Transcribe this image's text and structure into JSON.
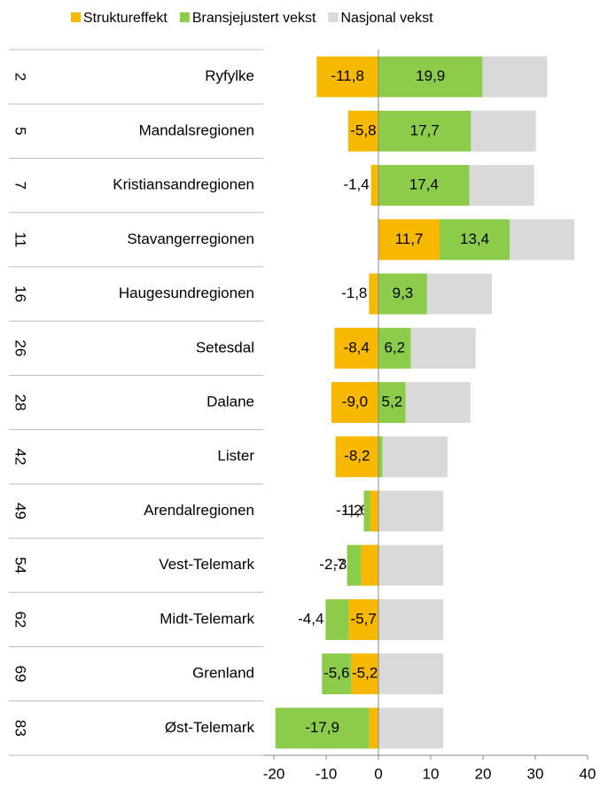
{
  "chart_data": {
    "type": "bar",
    "orientation": "horizontal",
    "stacked": true,
    "ranks": [
      "2",
      "5",
      "7",
      "11",
      "16",
      "26",
      "28",
      "42",
      "49",
      "54",
      "62",
      "69",
      "83"
    ],
    "categories": [
      "Ryfylke",
      "Mandalsregionen",
      "Kristiansandregionen",
      "Stavangerregionen",
      "Haugesundregionen",
      "Setesdal",
      "Dalane",
      "Lister",
      "Arendalregionen",
      "Vest-Telemark",
      "Midt-Telemark",
      "Grenland",
      "Øst-Telemark"
    ],
    "series": [
      {
        "name": "Struktureffekt",
        "color": "#F9B800",
        "values": [
          -11.8,
          -5.8,
          -1.4,
          11.7,
          -1.8,
          -8.4,
          -9.0,
          -8.2,
          -1.6,
          -3.3,
          -5.7,
          -5.2,
          -1.8
        ],
        "value_labels": [
          "-11,8",
          "-5,8",
          "-1,4",
          "11,7",
          "-1,8",
          "-8,4",
          "-9,0",
          "-8,2",
          "-1,6",
          "-3,3",
          "-5,7",
          "-5,2",
          "-1,8"
        ]
      },
      {
        "name": "Bransjejustert vekst",
        "color": "#8DCB4A",
        "values": [
          19.9,
          17.7,
          17.4,
          13.4,
          9.3,
          6.2,
          5.2,
          0.8,
          -1.2,
          -2.7,
          -4.4,
          -5.6,
          -17.9
        ],
        "value_labels": [
          "19,9",
          "17,7",
          "17,4",
          "13,4",
          "9,3",
          "6,2",
          "5,2",
          "0,8",
          "-1,2",
          "-2,7",
          "-4,4",
          "-5,6",
          "-17,9"
        ]
      },
      {
        "name": "Nasjonal vekst",
        "color": "#D9D9D9",
        "values": [
          12.4,
          12.4,
          12.4,
          12.4,
          12.4,
          12.4,
          12.4,
          12.4,
          12.4,
          12.4,
          12.4,
          12.4,
          12.4
        ]
      }
    ],
    "xlim": [
      -20,
      40
    ],
    "xticks": [
      -20,
      -10,
      0,
      10,
      20,
      30,
      40
    ],
    "legend": "top"
  }
}
